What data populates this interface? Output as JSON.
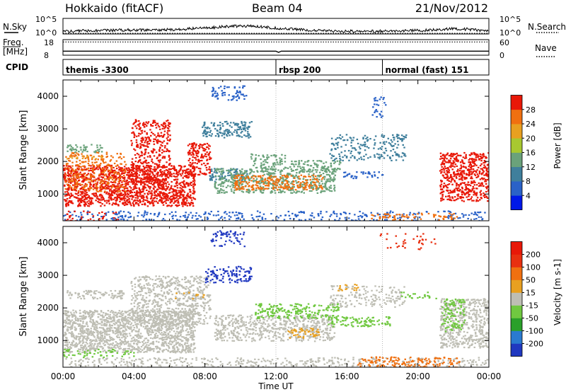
{
  "header": {
    "title": "Hokkaido (fitACF)",
    "beam": "Beam 04",
    "date": "21/Nov/2012"
  },
  "chart_data": [
    {
      "type": "line",
      "name": "nsky-panel",
      "ylabel_left": "N.Sky",
      "ylabel_right": "N.Search",
      "left_ticks": [
        "10^5",
        "10^0"
      ],
      "right_ticks": [
        "10^5",
        "10^0"
      ],
      "ylim": [
        0,
        5
      ],
      "note": "noise level trace, values estimated",
      "series": [
        {
          "line": "solid",
          "x": [
            0,
            1,
            2,
            3,
            4,
            5,
            6,
            7,
            8,
            9,
            10,
            11,
            12,
            13,
            14,
            15,
            16,
            17,
            18,
            19,
            20,
            21,
            22,
            23,
            24
          ],
          "values": [
            0.8,
            1.0,
            1.1,
            1.2,
            1.3,
            1.2,
            1.4,
            1.6,
            1.9,
            2.3,
            2.6,
            2.4,
            1.9,
            1.5,
            1.2,
            1.0,
            0.9,
            0.8,
            0.9,
            1.0,
            1.1,
            1.3,
            1.8,
            1.4,
            1.0
          ]
        },
        {
          "line": "dotted",
          "x": [
            0,
            24
          ],
          "values": [
            0.2,
            0.2
          ]
        }
      ]
    },
    {
      "type": "line",
      "name": "freq-panel",
      "ylabel_left": "Freq.\n[MHz]",
      "ylabel_right": "Nave",
      "left_ticks": [
        "18",
        "8"
      ],
      "right_ticks": [
        "60",
        "0"
      ],
      "series": [
        {
          "line": "solid",
          "x": [
            0,
            12,
            12.15,
            12.3,
            24
          ],
          "values": [
            10.6,
            10.6,
            9.8,
            10.6,
            10.6
          ]
        },
        {
          "line": "dotted",
          "x": [
            0,
            24
          ],
          "values": [
            16.5,
            16.5
          ]
        }
      ]
    },
    {
      "type": "table",
      "name": "cpid-bar",
      "label": "CPID",
      "segments": [
        {
          "start": 0,
          "label": "themis -3300"
        },
        {
          "start": 12,
          "label": "rbsp 200"
        },
        {
          "start": 18,
          "label": "normal (fast) 151"
        }
      ]
    },
    {
      "type": "heatmap",
      "name": "power-panel",
      "ylabel": "Slant Range [km]",
      "yticks": [
        1000,
        2000,
        3000,
        4000
      ],
      "ylim": [
        180,
        4500
      ],
      "xlim": [
        0,
        24
      ],
      "colorbar": {
        "label": "Power [dB]",
        "ticks": [
          "4",
          "8",
          "12",
          "16",
          "20",
          "24",
          "28"
        ],
        "colors": [
          "#0018e8",
          "#2a62c8",
          "#3f7f9c",
          "#6aa27a",
          "#a8c830",
          "#e8a020",
          "#f07010",
          "#e81808"
        ]
      },
      "regions": [
        {
          "x0": 0.0,
          "x1": 7.4,
          "r0": 650,
          "r1": 1900,
          "color": "#e81808",
          "density": 0.85
        },
        {
          "x0": 0.0,
          "x1": 3.5,
          "r0": 1100,
          "r1": 2300,
          "color": "#f07010",
          "density": 0.35
        },
        {
          "x0": 3.8,
          "x1": 6.0,
          "r0": 1300,
          "r1": 3300,
          "color": "#e81808",
          "density": 0.5
        },
        {
          "x0": 0.2,
          "x1": 2.2,
          "r0": 2300,
          "r1": 2550,
          "color": "#6aa27a",
          "density": 0.5
        },
        {
          "x0": 0.2,
          "x1": 2.2,
          "r0": 2100,
          "r1": 2200,
          "color": "#e8a020",
          "density": 0.4
        },
        {
          "x0": 7.0,
          "x1": 8.3,
          "r0": 1600,
          "r1": 2600,
          "color": "#e81808",
          "density": 0.6
        },
        {
          "x0": 7.8,
          "x1": 10.6,
          "r0": 2750,
          "r1": 3250,
          "color": "#3f7f9c",
          "density": 0.55
        },
        {
          "x0": 8.2,
          "x1": 10.4,
          "r0": 1400,
          "r1": 1800,
          "color": "#3f7f9c",
          "density": 0.45
        },
        {
          "x0": 8.3,
          "x1": 10.3,
          "r0": 3900,
          "r1": 4350,
          "color": "#2a62c8",
          "density": 0.35
        },
        {
          "x0": 8.5,
          "x1": 15.3,
          "r0": 1050,
          "r1": 1800,
          "color": "#6aa27a",
          "density": 0.55
        },
        {
          "x0": 9.6,
          "x1": 14.6,
          "r0": 1150,
          "r1": 1600,
          "color": "#f07010",
          "density": 0.55
        },
        {
          "x0": 10.6,
          "x1": 15.6,
          "r0": 1700,
          "r1": 2050,
          "color": "#6aa27a",
          "density": 0.45
        },
        {
          "x0": 10.4,
          "x1": 12.5,
          "r0": 2050,
          "r1": 2250,
          "color": "#6aa27a",
          "density": 0.4
        },
        {
          "x0": 15.6,
          "x1": 18.0,
          "r0": 1500,
          "r1": 1700,
          "color": "#2a62c8",
          "density": 0.4
        },
        {
          "x0": 15.0,
          "x1": 19.3,
          "r0": 2050,
          "r1": 2850,
          "color": "#3f7f9c",
          "density": 0.3
        },
        {
          "x0": 17.4,
          "x1": 18.2,
          "r0": 3300,
          "r1": 4000,
          "color": "#2a62c8",
          "density": 0.25
        },
        {
          "x0": 21.2,
          "x1": 24.0,
          "r0": 800,
          "r1": 2300,
          "color": "#e81808",
          "density": 0.7
        },
        {
          "x0": 0.0,
          "x1": 24.0,
          "r0": 200,
          "r1": 500,
          "color": "#2a62c8",
          "density": 0.25
        },
        {
          "x0": 0.0,
          "x1": 3.2,
          "r0": 200,
          "r1": 500,
          "color": "#e81808",
          "density": 0.2
        },
        {
          "x0": 17.3,
          "x1": 22.2,
          "r0": 200,
          "r1": 430,
          "color": "#f07010",
          "density": 0.35
        }
      ]
    },
    {
      "type": "heatmap",
      "name": "velocity-panel",
      "ylabel": "Slant Range [km]",
      "yticks": [
        1000,
        2000,
        3000,
        4000
      ],
      "ylim": [
        180,
        4500
      ],
      "xlim": [
        0,
        24
      ],
      "xticks": [
        "00:00",
        "04:00",
        "08:00",
        "12:00",
        "16:00",
        "20:00",
        "00:00"
      ],
      "xlabel": "Time UT",
      "colorbar": {
        "label": "Velocity [m s-1]",
        "ticks": [
          "200",
          "100",
          "50",
          "15",
          "-15",
          "-50",
          "-100",
          "-200"
        ],
        "colors": [
          "#2038c0",
          "#2a7ad0",
          "#2aa02a",
          "#70c840",
          "#bebeb4",
          "#e8a020",
          "#f07010",
          "#e83010",
          "#e81808"
        ]
      },
      "regions": [
        {
          "x0": 0.0,
          "x1": 7.4,
          "r0": 650,
          "r1": 1950,
          "color": "#bebeb4",
          "density": 0.85
        },
        {
          "x0": 3.8,
          "x1": 8.3,
          "r0": 1500,
          "r1": 3000,
          "color": "#bebeb4",
          "density": 0.5
        },
        {
          "x0": 0.2,
          "x1": 3.5,
          "r0": 2300,
          "r1": 2550,
          "color": "#bebeb4",
          "density": 0.55
        },
        {
          "x0": 8.0,
          "x1": 10.6,
          "r0": 2800,
          "r1": 3300,
          "color": "#2038c0",
          "density": 0.45
        },
        {
          "x0": 8.3,
          "x1": 10.3,
          "r0": 3900,
          "r1": 4400,
          "color": "#2038c0",
          "density": 0.3
        },
        {
          "x0": 8.5,
          "x1": 15.3,
          "r0": 1000,
          "r1": 1800,
          "color": "#bebeb4",
          "density": 0.55
        },
        {
          "x0": 10.8,
          "x1": 15.5,
          "r0": 1700,
          "r1": 2150,
          "color": "#70c840",
          "density": 0.5
        },
        {
          "x0": 14.9,
          "x1": 18.4,
          "r0": 1450,
          "r1": 1750,
          "color": "#70c840",
          "density": 0.5
        },
        {
          "x0": 12.6,
          "x1": 14.4,
          "r0": 1100,
          "r1": 1400,
          "color": "#e8a020",
          "density": 0.5
        },
        {
          "x0": 15.4,
          "x1": 16.6,
          "r0": 2550,
          "r1": 2750,
          "color": "#e8a020",
          "density": 0.45
        },
        {
          "x0": 15.0,
          "x1": 19.3,
          "r0": 2050,
          "r1": 2700,
          "color": "#bebeb4",
          "density": 0.3
        },
        {
          "x0": 19.0,
          "x1": 21.0,
          "r0": 2300,
          "r1": 2500,
          "color": "#70c840",
          "density": 0.3
        },
        {
          "x0": 21.2,
          "x1": 24.0,
          "r0": 800,
          "r1": 2300,
          "color": "#bebeb4",
          "density": 0.65
        },
        {
          "x0": 21.3,
          "x1": 22.6,
          "r0": 1300,
          "r1": 2300,
          "color": "#70c840",
          "density": 0.45
        },
        {
          "x0": 0.0,
          "x1": 24.0,
          "r0": 200,
          "r1": 500,
          "color": "#bebeb4",
          "density": 0.3
        },
        {
          "x0": 0.0,
          "x1": 4.0,
          "r0": 500,
          "r1": 750,
          "color": "#70c840",
          "density": 0.3
        },
        {
          "x0": 16.5,
          "x1": 22.3,
          "r0": 200,
          "r1": 520,
          "color": "#f07010",
          "density": 0.4
        },
        {
          "x0": 6.0,
          "x1": 8.0,
          "r0": 2300,
          "r1": 2500,
          "color": "#e8a020",
          "density": 0.15
        },
        {
          "x0": 17.8,
          "x1": 21.0,
          "r0": 3800,
          "r1": 4300,
          "color": "#e83010",
          "density": 0.12
        }
      ]
    }
  ]
}
